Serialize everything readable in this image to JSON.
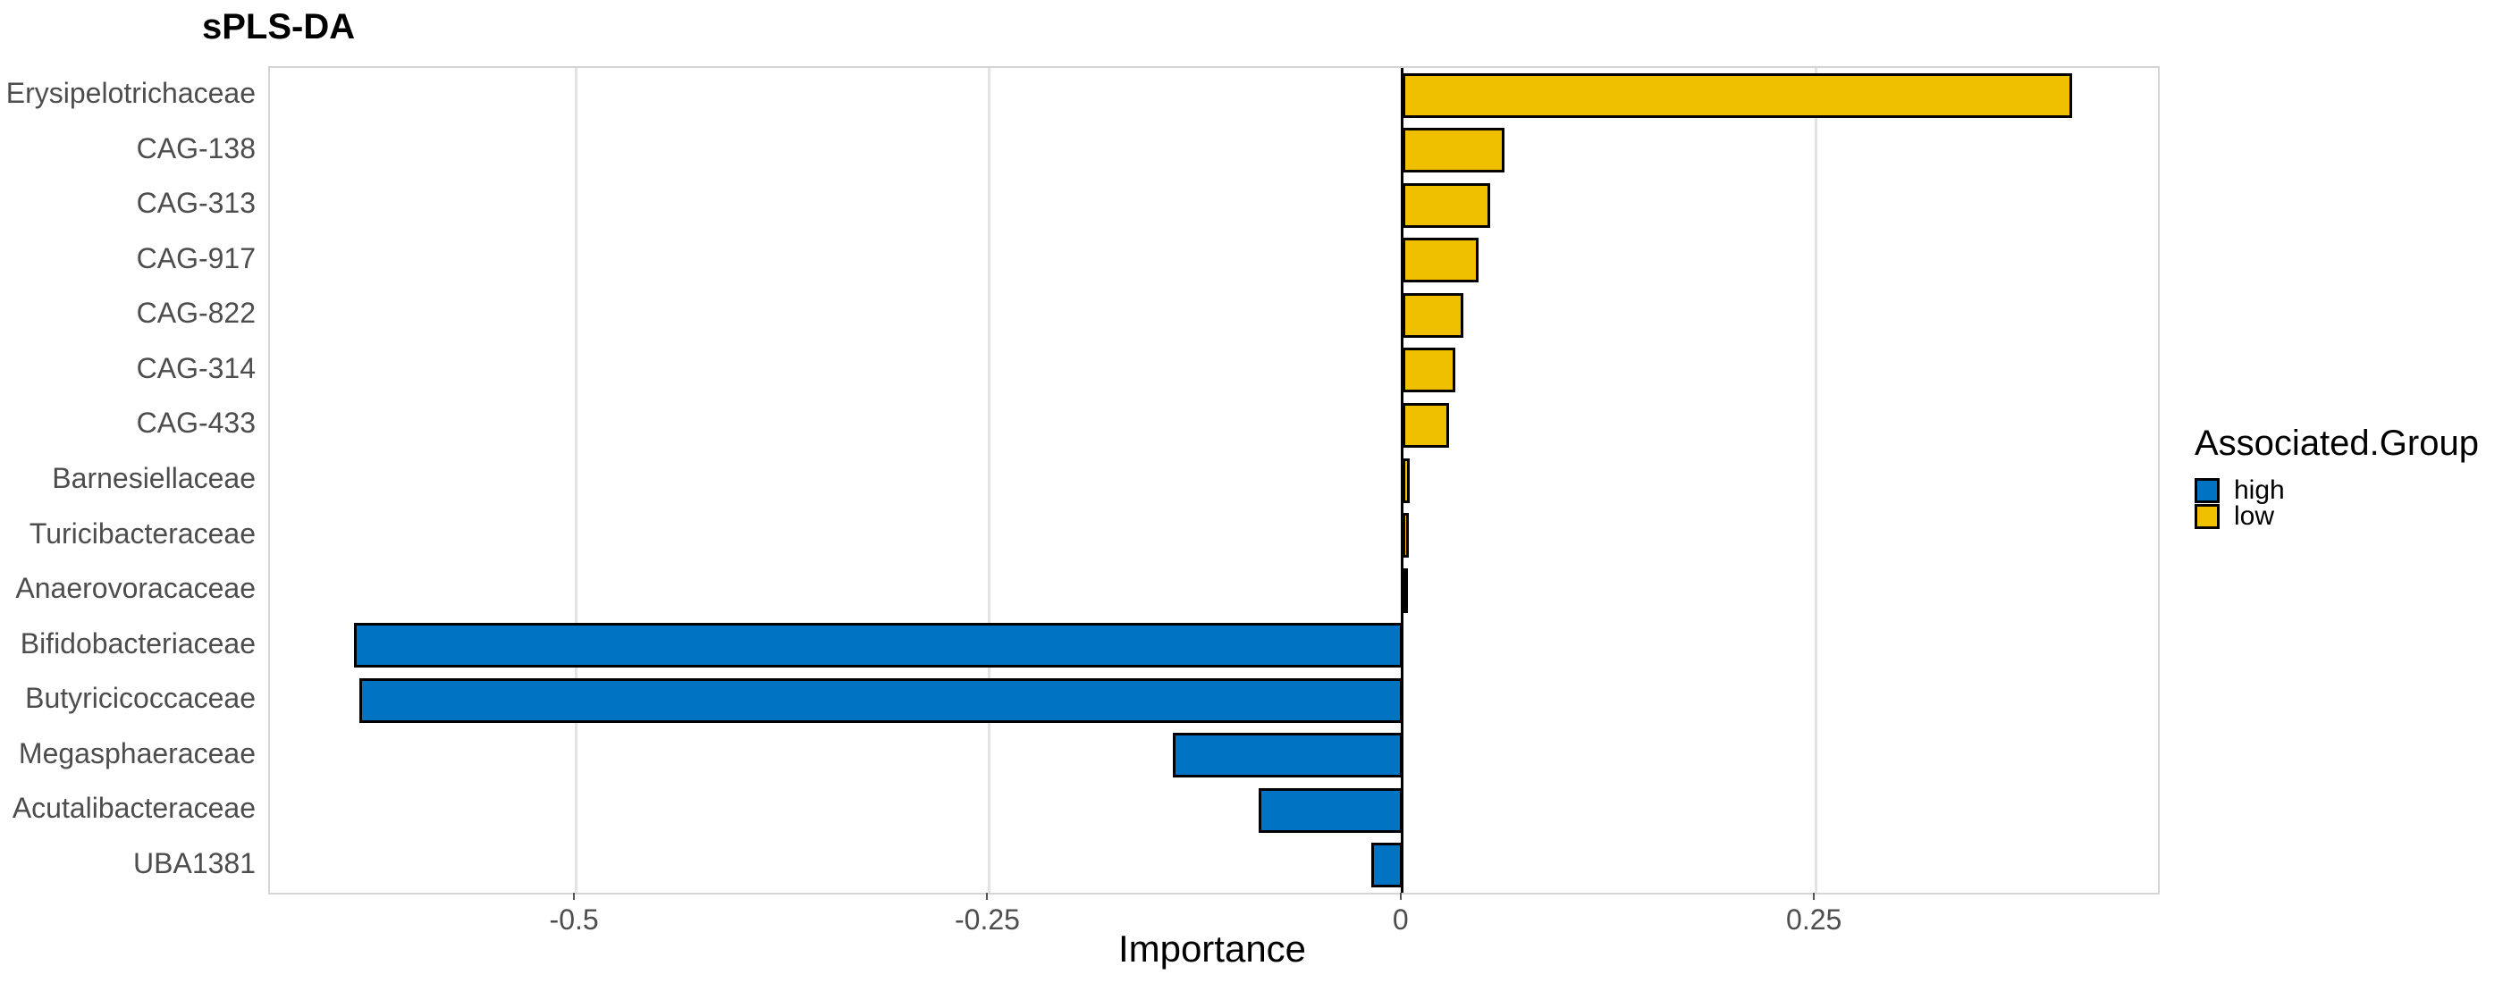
{
  "title": "sPLS-DA",
  "chart_data": {
    "type": "bar",
    "orientation": "horizontal",
    "title": "sPLS-DA",
    "xlabel": "Importance",
    "ylabel": "",
    "xlim": [
      -0.685,
      0.457
    ],
    "x_ticks": [
      -0.5,
      -0.25,
      0,
      0.25
    ],
    "x_tick_labels": [
      "-0.5",
      "-0.25",
      "0",
      "0.25"
    ],
    "grid": "vertical-major-only",
    "zero_reference_line": 0,
    "categories": [
      "Erysipelotrichaceae",
      "CAG-138",
      "CAG-313",
      "CAG-917",
      "CAG-822",
      "CAG-314",
      "CAG-433",
      "Barnesiellaceae",
      "Turicibacteraceae",
      "Anaerovoracaceae",
      "Bifidobacteriaceae",
      "Butyricicoccaceae",
      "Megasphaeraceae",
      "Acutalibacteraceae",
      "UBA1381"
    ],
    "values": [
      0.405,
      0.062,
      0.053,
      0.046,
      0.037,
      0.032,
      0.028,
      0.0045,
      0.004,
      0.002,
      -0.634,
      -0.631,
      -0.139,
      -0.087,
      -0.019
    ],
    "groups": [
      "low",
      "low",
      "low",
      "low",
      "low",
      "low",
      "low",
      "low",
      "low",
      "low",
      "high",
      "high",
      "high",
      "high",
      "high"
    ],
    "legend": {
      "title": "Associated.Group",
      "position": "right",
      "items": [
        {
          "label": "high",
          "color": "#0073C2"
        },
        {
          "label": "low",
          "color": "#EFC000"
        }
      ]
    },
    "colors": {
      "bar_outline": "#000000",
      "zero_line": "#000000",
      "gridline": "#e3e3e3",
      "panel_border": "#d5d5d5",
      "axis_text": "#4d4d4d"
    }
  }
}
